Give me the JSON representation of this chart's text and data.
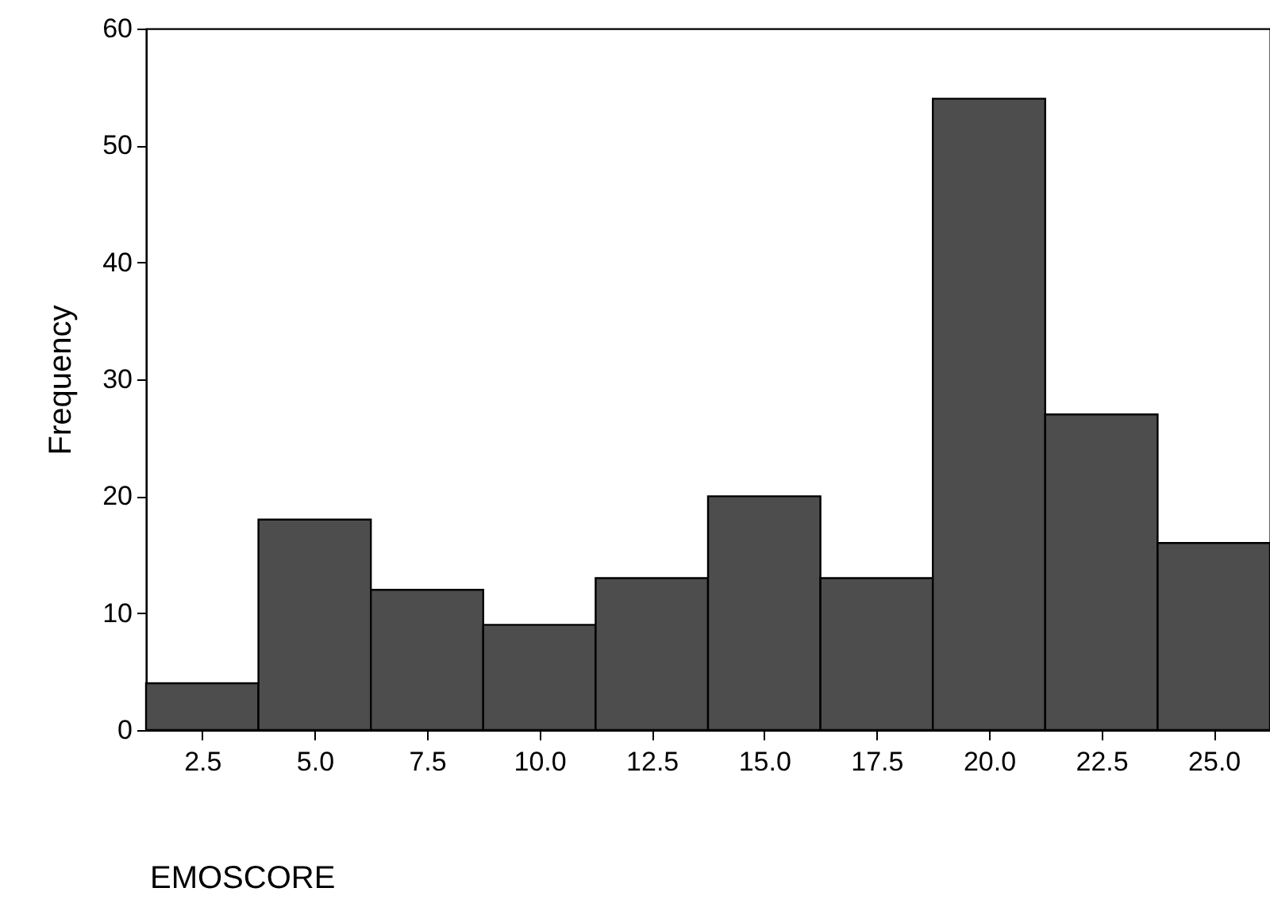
{
  "chart_data": {
    "type": "histogram",
    "xlabel": "EMOSCORE",
    "ylabel": "Frequency",
    "bins": [
      1.25,
      3.75,
      6.25,
      8.75,
      11.25,
      13.75,
      16.25,
      18.75,
      21.25,
      23.75,
      26.25
    ],
    "values": [
      4,
      18,
      12,
      9,
      13,
      20,
      13,
      54,
      27,
      16
    ],
    "color": "#4d4d4d",
    "xlim": [
      1.25,
      26.25
    ],
    "xticks": [
      2.5,
      {
        "value": 5,
        "label": "5.0"
      },
      7.5,
      {
        "value": 10,
        "label": "10.0"
      },
      12.5,
      {
        "value": 15,
        "label": "15.0"
      },
      17.5,
      {
        "value": 20,
        "label": "20.0"
      },
      22.5,
      {
        "value": 25,
        "label": "25.0"
      }
    ],
    "ylim": [
      0,
      60
    ],
    "yticks": [
      0,
      10,
      20,
      30,
      40,
      50,
      60
    ],
    "grid": false
  }
}
